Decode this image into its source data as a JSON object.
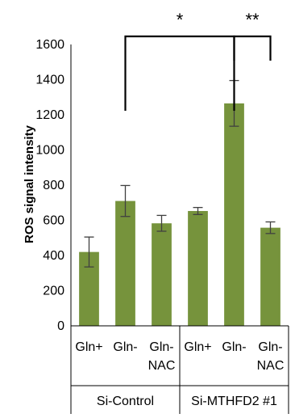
{
  "chart_data": {
    "type": "bar",
    "ylabel": "ROS signal intensity",
    "ylim": [
      0,
      1600
    ],
    "yticks": [
      "0",
      "200",
      "400",
      "600",
      "800",
      "1000",
      "1200",
      "1400",
      "1600"
    ],
    "grid": false,
    "bar_color": "#76933c",
    "groups": [
      {
        "label": "Si-Control",
        "categories": [
          {
            "lines": [
              "Gln+"
            ],
            "value": 420,
            "error": 85
          },
          {
            "lines": [
              "Gln-"
            ],
            "value": 710,
            "error": 88
          },
          {
            "lines": [
              "Gln-",
              "NAC"
            ],
            "value": 583,
            "error": 45
          }
        ]
      },
      {
        "label": "Si-MTHFD2 #1",
        "categories": [
          {
            "lines": [
              "Gln+"
            ],
            "value": 653,
            "error": 20
          },
          {
            "lines": [
              "Gln-"
            ],
            "value": 1265,
            "error": 130
          },
          {
            "lines": [
              "Gln-",
              "NAC"
            ],
            "value": 558,
            "error": 33
          }
        ]
      }
    ],
    "annotations": [
      {
        "label": "*",
        "from_bar": 1,
        "to_bar": 4
      },
      {
        "label": "**",
        "from_bar": 4,
        "to_bar": 5
      }
    ]
  }
}
